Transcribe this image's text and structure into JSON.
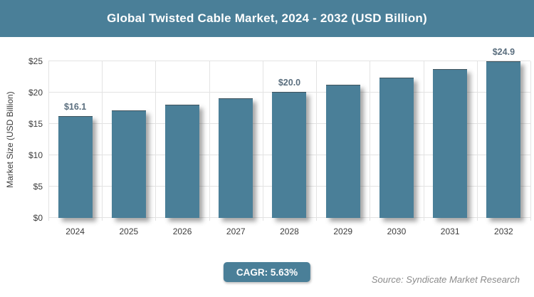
{
  "header": {
    "title": "Global Twisted Cable Market, 2024 - 2032 (USD Billion)"
  },
  "chart_data": {
    "type": "bar",
    "title": "Global Twisted Cable Market, 2024 - 2032 (USD Billion)",
    "categories": [
      "2024",
      "2025",
      "2026",
      "2027",
      "2028",
      "2029",
      "2030",
      "2031",
      "2032"
    ],
    "values": [
      16.1,
      17.0,
      18.0,
      19.0,
      20.0,
      21.1,
      22.3,
      23.6,
      24.9
    ],
    "bar_labels": [
      "$16.1",
      "",
      "",
      "",
      "$20.0",
      "",
      "",
      "",
      "$24.9"
    ],
    "xlabel": "",
    "ylabel": "Market Size (USD Billion)",
    "ylim": [
      0,
      25
    ],
    "ytick_step": 5,
    "ytick_prefix": "$",
    "grid": true,
    "legend": false,
    "colors": {
      "bar": "#4A7F98",
      "grid": "#E3E3E3",
      "axis_text": "#3C3C3C",
      "value_label": "#5A6E7E"
    }
  },
  "footer": {
    "cagr_label": "CAGR: 5.63%",
    "source": "Source: Syndicate Market Research"
  },
  "colors": {
    "accent_teal": "#4A7F98",
    "banner_bg": "#4A7F98",
    "source_text": "#8C8C8C"
  }
}
